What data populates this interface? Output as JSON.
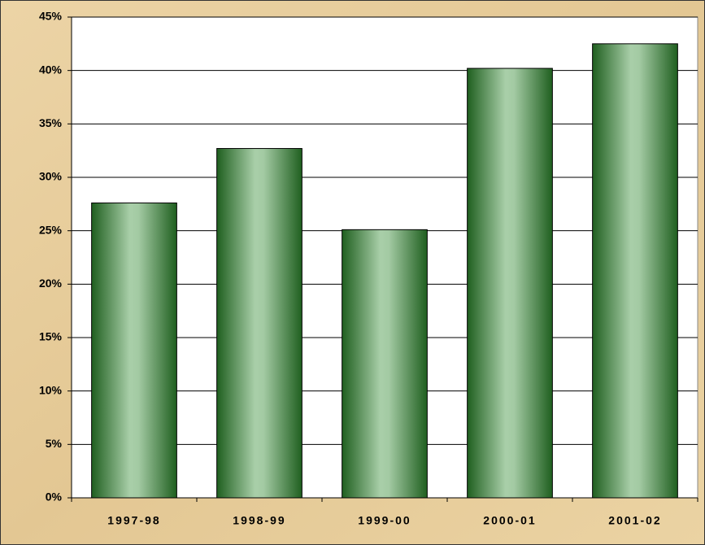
{
  "chart_data": {
    "type": "bar",
    "categories": [
      "1997-98",
      "1998-99",
      "1999-00",
      "2000-01",
      "2001-02"
    ],
    "values": [
      27.6,
      32.7,
      25.1,
      40.2,
      42.5
    ],
    "color": "#1f5f1f",
    "ylim": [
      0,
      45
    ],
    "yticks": [
      {
        "value": 0,
        "label": "0%"
      },
      {
        "value": 5,
        "label": "5%"
      },
      {
        "value": 10,
        "label": "10%"
      },
      {
        "value": 15,
        "label": "15%"
      },
      {
        "value": 20,
        "label": "20%"
      },
      {
        "value": 25,
        "label": "25%"
      },
      {
        "value": 30,
        "label": "30%"
      },
      {
        "value": 35,
        "label": "35%"
      },
      {
        "value": 40,
        "label": "40%"
      },
      {
        "value": 45,
        "label": "45%"
      }
    ],
    "grid": true
  }
}
